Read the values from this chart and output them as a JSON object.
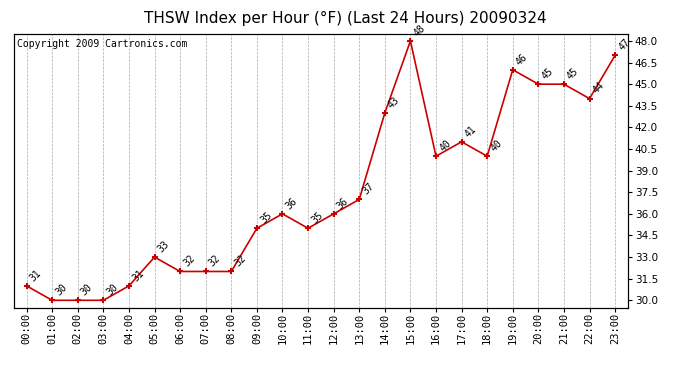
{
  "title": "THSW Index per Hour (°F) (Last 24 Hours) 20090324",
  "copyright": "Copyright 2009 Cartronics.com",
  "hours": [
    "00:00",
    "01:00",
    "02:00",
    "03:00",
    "04:00",
    "05:00",
    "06:00",
    "07:00",
    "08:00",
    "09:00",
    "10:00",
    "11:00",
    "12:00",
    "13:00",
    "14:00",
    "15:00",
    "16:00",
    "17:00",
    "18:00",
    "19:00",
    "20:00",
    "21:00",
    "22:00",
    "23:00"
  ],
  "values": [
    31,
    30,
    30,
    30,
    31,
    33,
    32,
    32,
    32,
    35,
    36,
    35,
    36,
    37,
    43,
    48,
    40,
    41,
    40,
    46,
    45,
    45,
    44,
    47
  ],
  "ylim": [
    29.5,
    48.5
  ],
  "yticks": [
    30.0,
    31.5,
    33.0,
    34.5,
    36.0,
    37.5,
    39.0,
    40.5,
    42.0,
    43.5,
    45.0,
    46.5,
    48.0
  ],
  "line_color": "#cc0000",
  "marker_color": "#cc0000",
  "bg_color": "#ffffff",
  "plot_bg_color": "#ffffff",
  "grid_color": "#aaaaaa",
  "title_fontsize": 11,
  "copyright_fontsize": 7,
  "label_fontsize": 7,
  "tick_fontsize": 7.5
}
